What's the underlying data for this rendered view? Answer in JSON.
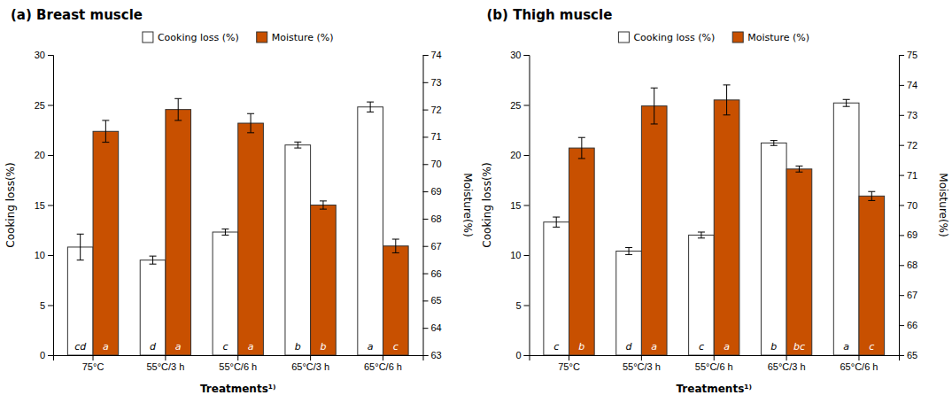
{
  "chart_data": [
    {
      "type": "bar",
      "title": "(a) Breast muscle",
      "categories": [
        "75°C",
        "55°C/3 h",
        "55°C/6 h",
        "65°C/3 h",
        "65°C/6 h"
      ],
      "series": [
        {
          "name": "Cooking loss (%)",
          "color": "#ffffff",
          "values": [
            10.8,
            9.5,
            12.3,
            21.0,
            24.8
          ],
          "errors": [
            1.3,
            0.4,
            0.3,
            0.3,
            0.5
          ],
          "letters": [
            "cd",
            "d",
            "c",
            "b",
            "a"
          ]
        },
        {
          "name": "Moisture (%)",
          "color": "#C85000",
          "axis": "y2",
          "values": [
            71.2,
            72.0,
            71.5,
            68.5,
            67.0
          ],
          "errors": [
            0.4,
            0.4,
            0.35,
            0.15,
            0.25
          ],
          "letters": [
            "a",
            "a",
            "a",
            "b",
            "c"
          ]
        }
      ],
      "xlabel": "Treatments¹⁾",
      "ylabel": "Cooking loss(%)",
      "y2label": "Moisture(%)",
      "ylim": [
        0,
        30
      ],
      "yticks": [
        0,
        5,
        10,
        15,
        20,
        25,
        30
      ],
      "y2lim": [
        63,
        74
      ],
      "y2ticks": [
        63,
        64,
        65,
        66,
        67,
        68,
        69,
        70,
        71,
        72,
        73,
        74
      ],
      "grid": false,
      "legend": "top"
    },
    {
      "type": "bar",
      "title": "(b) Thigh muscle",
      "categories": [
        "75°C",
        "55°C/3 h",
        "55°C/6 h",
        "65°C/3 h",
        "65°C/6 h"
      ],
      "series": [
        {
          "name": "Cooking loss (%)",
          "color": "#ffffff",
          "values": [
            13.3,
            10.4,
            12.0,
            21.2,
            25.2
          ],
          "errors": [
            0.5,
            0.35,
            0.3,
            0.25,
            0.35
          ],
          "letters": [
            "c",
            "d",
            "c",
            "b",
            "a"
          ]
        },
        {
          "name": "Moisture (%)",
          "color": "#C85000",
          "axis": "y2",
          "values": [
            71.9,
            73.3,
            73.5,
            71.2,
            70.3
          ],
          "errors": [
            0.35,
            0.6,
            0.5,
            0.1,
            0.15
          ],
          "letters": [
            "b",
            "a",
            "a",
            "bc",
            "c"
          ]
        }
      ],
      "xlabel": "Treatments¹⁾",
      "ylabel": "Cooking loss(%)",
      "y2label": "Moisture(%)",
      "ylim": [
        0,
        30
      ],
      "yticks": [
        0,
        5,
        10,
        15,
        20,
        25,
        30
      ],
      "y2lim": [
        65,
        75
      ],
      "y2ticks": [
        65,
        66,
        67,
        68,
        69,
        70,
        71,
        72,
        73,
        74,
        75
      ],
      "grid": false,
      "legend": "top"
    }
  ]
}
